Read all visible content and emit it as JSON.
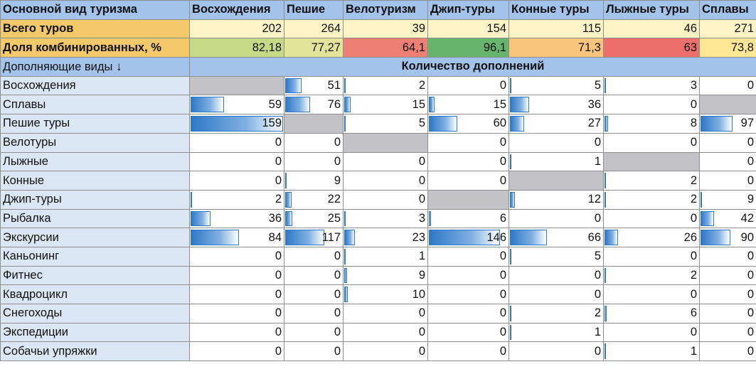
{
  "header": {
    "corner": "Основной вид туризма",
    "columns": [
      "Восхождения",
      "Пешие",
      "Велотуризм",
      "Джип-туры",
      "Конные туры",
      "Лыжные туры",
      "Сплавы"
    ]
  },
  "totals": {
    "label": "Всего туров",
    "values": [
      "202",
      "264",
      "39",
      "154",
      "115",
      "46",
      "271"
    ]
  },
  "combined_share": {
    "label": "Доля комбинированных, %",
    "values": [
      "82,18",
      "77,27",
      "64,1",
      "96,1",
      "71,3",
      "63",
      "73,8"
    ],
    "colors": [
      "#c6da86",
      "#e4e39a",
      "#ee7f75",
      "#65b56c",
      "#f9c47c",
      "#ec6f6c",
      "#fde795"
    ]
  },
  "subheader": {
    "left": "Дополняющие виды",
    "arrow": "↓",
    "center": "Количество дополнений"
  },
  "colors": {
    "header_blue": "#a3c3ea",
    "row_label_bg": "#dbe7f4",
    "na_gray": "#c3c3c7",
    "bar_blue": "#2f78c6"
  },
  "rows": [
    {
      "label": "Восхождения",
      "values": [
        null,
        "51",
        "2",
        "0",
        "5",
        "3",
        "0"
      ],
      "bars": [
        0,
        0.3,
        0.02,
        0,
        0.03,
        0.02,
        0
      ]
    },
    {
      "label": "Сплавы",
      "values": [
        "59",
        "76",
        "15",
        "15",
        "36",
        "0",
        null
      ],
      "bars": [
        0.37,
        0.45,
        0.09,
        0.09,
        0.22,
        0,
        0
      ]
    },
    {
      "label": "Пешие туры",
      "values": [
        "159",
        null,
        "5",
        "60",
        "27",
        "8",
        "97"
      ],
      "bars": [
        1.0,
        0,
        0.03,
        0.37,
        0.17,
        0.05,
        0.6
      ]
    },
    {
      "label": "Велотуры",
      "values": [
        "0",
        "0",
        null,
        "0",
        "0",
        "0",
        "0"
      ],
      "bars": [
        0,
        0,
        0,
        0,
        0,
        0,
        0
      ]
    },
    {
      "label": "Лыжные",
      "values": [
        "0",
        "0",
        "0",
        "0",
        "1",
        null,
        "0"
      ],
      "bars": [
        0,
        0,
        0,
        0,
        0.01,
        0,
        0
      ]
    },
    {
      "label": "Конные",
      "values": [
        "0",
        "9",
        "0",
        "0",
        null,
        "2",
        "0"
      ],
      "bars": [
        0,
        0.05,
        0,
        0,
        0,
        0.01,
        0
      ]
    },
    {
      "label": "Джип-туры",
      "values": [
        "2",
        "22",
        "0",
        null,
        "12",
        "2",
        "9"
      ],
      "bars": [
        0.01,
        0.13,
        0,
        0,
        0.07,
        0.01,
        0.05
      ]
    },
    {
      "label": "Рыбалка",
      "values": [
        "36",
        "25",
        "3",
        "6",
        "0",
        "0",
        "42"
      ],
      "bars": [
        0.23,
        0.15,
        0.02,
        0.04,
        0,
        0,
        0.26
      ]
    },
    {
      "label": "Экскурсии",
      "values": [
        "84",
        "117",
        "23",
        "146",
        "66",
        "26",
        "90"
      ],
      "bars": [
        0.53,
        0.69,
        0.14,
        0.9,
        0.41,
        0.16,
        0.56
      ]
    },
    {
      "label": "Каньонинг",
      "values": [
        "0",
        "0",
        "1",
        "0",
        "5",
        "0",
        "0"
      ],
      "bars": [
        0,
        0,
        0.01,
        0,
        0.03,
        0,
        0
      ]
    },
    {
      "label": "Фитнес",
      "values": [
        "0",
        "0",
        "9",
        "0",
        "0",
        "2",
        "0"
      ],
      "bars": [
        0,
        0,
        0.05,
        0,
        0,
        0.01,
        0
      ]
    },
    {
      "label": "Квадроцикл",
      "values": [
        "0",
        "0",
        "10",
        "0",
        "0",
        "0",
        "0"
      ],
      "bars": [
        0,
        0,
        0.06,
        0,
        0,
        0,
        0
      ]
    },
    {
      "label": "Снегоходы",
      "values": [
        "0",
        "0",
        "0",
        "0",
        "2",
        "6",
        "0"
      ],
      "bars": [
        0,
        0,
        0,
        0,
        0.01,
        0.04,
        0
      ]
    },
    {
      "label": "Экспедиции",
      "values": [
        "0",
        "0",
        "0",
        "0",
        "1",
        "0",
        "0"
      ],
      "bars": [
        0,
        0,
        0,
        0,
        0.01,
        0,
        0
      ]
    },
    {
      "label": "Собачьи упряжки",
      "values": [
        "0",
        "0",
        "0",
        "0",
        "0",
        "1",
        "0"
      ],
      "bars": [
        0,
        0,
        0,
        0,
        0,
        0.01,
        0
      ]
    }
  ]
}
